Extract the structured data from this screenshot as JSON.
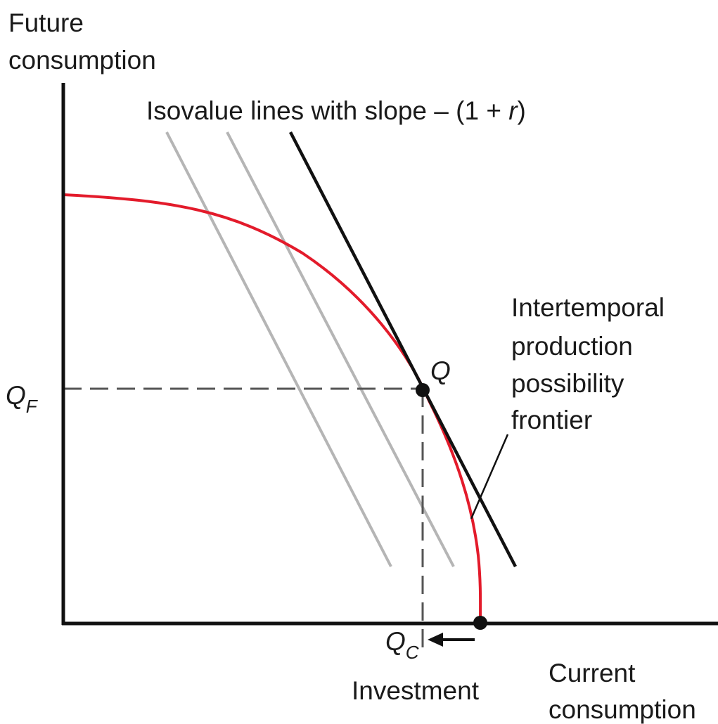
{
  "axes": {
    "y_label": [
      "Future",
      "consumption"
    ],
    "x_label": [
      "Current",
      "consumption"
    ]
  },
  "isovalue_label": {
    "text": "Isovalue lines with slope – (1 + ",
    "variable": "r",
    "close": ")"
  },
  "points": {
    "q": "Q",
    "qf": {
      "letter": "Q",
      "sub": "F"
    },
    "qc": {
      "letter": "Q",
      "sub": "C"
    }
  },
  "frontier_label": [
    "Intertemporal",
    "production",
    "possibility",
    "frontier"
  ],
  "investment_label": "Investment"
}
